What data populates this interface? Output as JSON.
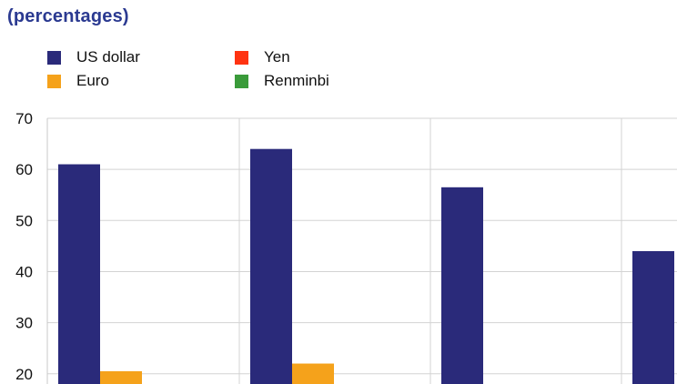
{
  "subtitle": "(percentages)",
  "legend": [
    {
      "label": "US dollar",
      "color": "#2a2a7a"
    },
    {
      "label": "Yen",
      "color": "#ff3311"
    },
    {
      "label": "Euro",
      "color": "#f5a21b"
    },
    {
      "label": "Renminbi",
      "color": "#3a9b3a"
    }
  ],
  "chart_data": {
    "type": "bar",
    "title": "",
    "xlabel": "",
    "ylabel": "",
    "ylim": [
      18,
      70
    ],
    "yticks": [
      20,
      30,
      40,
      50,
      60,
      70
    ],
    "grid": true,
    "legend_position": "top-left",
    "series": [
      {
        "name": "US dollar",
        "values": [
          61,
          64,
          56.5,
          44
        ]
      },
      {
        "name": "Euro",
        "values": [
          20.5,
          22,
          null,
          null
        ]
      }
    ]
  }
}
